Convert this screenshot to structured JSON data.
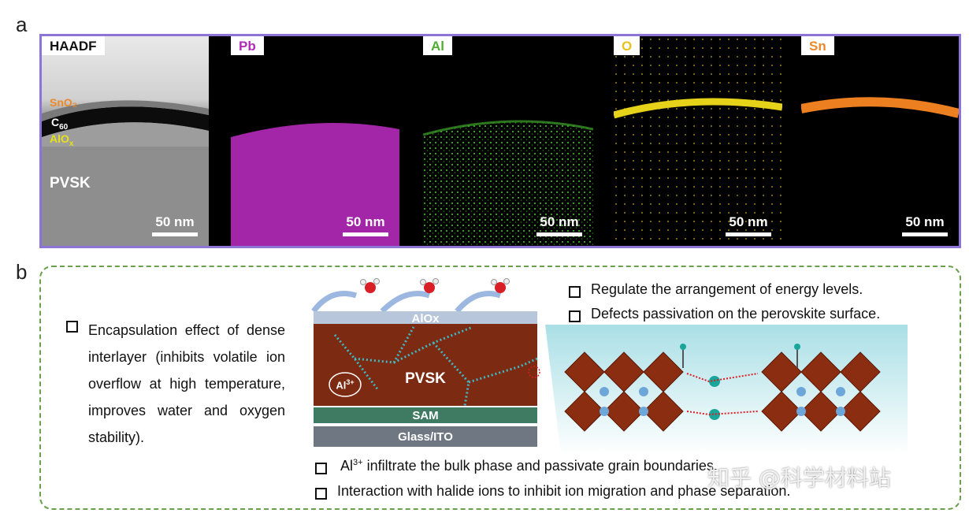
{
  "panel_a": {
    "letter": "a",
    "tiles": [
      {
        "label": "HAADF",
        "color": "#000000",
        "scale": "50 nm"
      },
      {
        "label": "Pb",
        "color": "#b22bb8",
        "scale": "50 nm"
      },
      {
        "label": "Al",
        "color": "#4fae32",
        "scale": "50 nm"
      },
      {
        "label": "O",
        "color": "#e7c21a",
        "scale": "50 nm"
      },
      {
        "label": "Sn",
        "color": "#ec8a2a",
        "scale": "50 nm"
      }
    ],
    "layers": {
      "sno2": "SnO₂",
      "c60": "C",
      "c60_sub": "60",
      "alox": "AlO",
      "alox_sub": "x",
      "pvsk": "PVSK"
    }
  },
  "panel_b": {
    "letter": "b",
    "left_bullet": "Encapsulation effect of dense interlayer (inhibits volatile ion overflow at high temperature, improves water and oxygen stability).",
    "stack": {
      "top": "AlOx",
      "middle": "PVSK",
      "ion": "Al",
      "ion_sup": "3+",
      "sam": "SAM",
      "bottom": "Glass/ITO"
    },
    "right_bullets": [
      "Regulate the arrangement of energy levels.",
      "Defects passivation on the perovskite surface."
    ],
    "bottom_bullets": [
      {
        "prefix": "Al",
        "sup": "3+",
        "text": " infiltrate the bulk phase and passivate grain boundaries."
      },
      {
        "prefix": "",
        "sup": "",
        "text": "Interaction with halide ions to inhibit ion migration and phase separation."
      }
    ]
  },
  "watermark": "知乎 @科学材料站",
  "colors": {
    "frame_a": "#8f74d8",
    "frame_b": "#6a9f4c",
    "pvsk": "#7d2a12",
    "sam": "#3f7b62",
    "glass": "#6f7782",
    "alox": "#b8c6db"
  }
}
